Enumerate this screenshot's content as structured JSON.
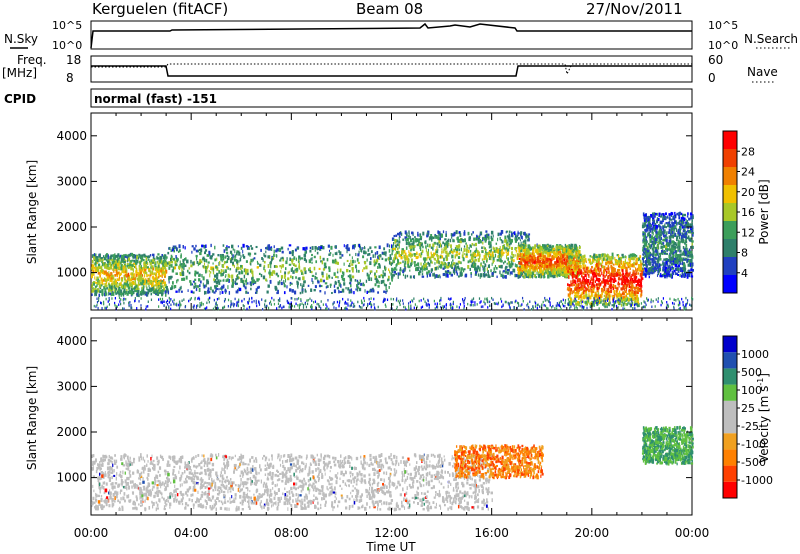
{
  "header": {
    "station": "Kerguelen (fitACF)",
    "beam": "Beam 08",
    "date": "27/Nov/2011"
  },
  "labels": {
    "nsky": "N.Sky",
    "nsearch": "N.Search",
    "freq_top": "Freq.",
    "freq_unit": "[MHz]",
    "nave": "Nave",
    "cpid": "CPID",
    "program": "normal (fast) -151",
    "ylabel": "Slant Range [km]",
    "xlabel": "Time UT"
  },
  "noise_panel": {
    "left_ticks": [
      "10^5",
      "10^0"
    ],
    "right_ticks": [
      "10^5",
      "10^0"
    ]
  },
  "freq_panel": {
    "left_ticks": [
      "18",
      "8"
    ],
    "right_ticks": [
      "60",
      "0"
    ]
  },
  "colors": {
    "power": [
      "#0000ff",
      "#2040c0",
      "#2e7f6a",
      "#3c9e5a",
      "#a8c828",
      "#f0c000",
      "#f08000",
      "#f04000",
      "#ff0000"
    ],
    "velocity": [
      "#ff0000",
      "#ff4000",
      "#ff8000",
      "#f0a020",
      "#bebebe",
      "#bebebe",
      "#60c040",
      "#2f8f6f",
      "#2050b0",
      "#0000cc"
    ],
    "ground_scatter": "#bebebe"
  },
  "chart_data": [
    {
      "type": "heatmap",
      "name": "Power",
      "x": [
        "00:00",
        "04:00",
        "08:00",
        "12:00",
        "16:00",
        "20:00",
        "00:00"
      ],
      "xlim_hours": [
        0,
        24
      ],
      "ylim": [
        180,
        4500
      ],
      "yticks": [
        1000,
        2000,
        3000,
        4000
      ],
      "colorbar": {
        "label": "Power [dB]",
        "ticks": [
          "4",
          "8",
          "12",
          "16",
          "20",
          "24",
          "28"
        ],
        "range": [
          0,
          30
        ]
      },
      "regions": [
        {
          "t0": 0.0,
          "t1": 3.0,
          "r0": 500,
          "r1": 1400,
          "level": 20
        },
        {
          "t0": 3.0,
          "t1": 12.0,
          "r0": 550,
          "r1": 1600,
          "level": 14
        },
        {
          "t0": 12.0,
          "t1": 17.5,
          "r0": 900,
          "r1": 1900,
          "level": 16
        },
        {
          "t0": 17.0,
          "t1": 19.5,
          "r0": 900,
          "r1": 1600,
          "level": 26
        },
        {
          "t0": 19.0,
          "t1": 22.0,
          "r0": 280,
          "r1": 1400,
          "level": 30
        },
        {
          "t0": 22.0,
          "t1": 24.0,
          "r0": 900,
          "r1": 2300,
          "level": 10
        }
      ]
    },
    {
      "type": "heatmap",
      "name": "Velocity",
      "x": [
        "00:00",
        "04:00",
        "08:00",
        "12:00",
        "16:00",
        "20:00",
        "00:00"
      ],
      "xlim_hours": [
        0,
        24
      ],
      "ylim": [
        180,
        4500
      ],
      "yticks": [
        1000,
        2000,
        3000,
        4000
      ],
      "colorbar": {
        "label": "Velocity [m s^-1]",
        "ticks": [
          "1000",
          "500",
          "100",
          "25",
          "-25",
          "-100",
          "-500",
          "-1000"
        ]
      },
      "regions": [
        {
          "t0": 0.0,
          "t1": 16.0,
          "r0": 300,
          "r1": 1500,
          "class": "ground"
        },
        {
          "t0": 14.5,
          "t1": 18.0,
          "r0": 1000,
          "r1": 1700,
          "class": "away"
        },
        {
          "t0": 22.0,
          "t1": 24.0,
          "r0": 1300,
          "r1": 2100,
          "class": "toward"
        }
      ]
    }
  ]
}
